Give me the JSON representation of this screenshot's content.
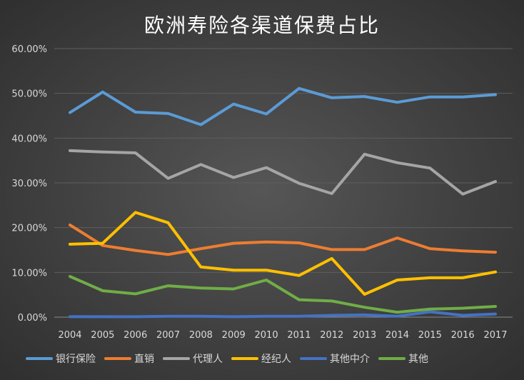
{
  "chart_data": {
    "type": "line",
    "title": "欧洲寿险各渠道保费占比",
    "categories": [
      "2004",
      "2005",
      "2006",
      "2007",
      "2008",
      "2009",
      "2010",
      "2011",
      "2012",
      "2013",
      "2014",
      "2015",
      "2016",
      "2017"
    ],
    "y_ticks": [
      "0.00%",
      "10.00%",
      "20.00%",
      "30.00%",
      "40.00%",
      "50.00%",
      "60.00%"
    ],
    "ylim": [
      0,
      60
    ],
    "grid": true,
    "legend_position": "bottom",
    "series": [
      {
        "name": "银行保险",
        "color": "#5b9bd5",
        "values": [
          45.7,
          50.3,
          45.8,
          45.5,
          43.0,
          47.6,
          45.4,
          51.1,
          49.0,
          49.3,
          48.0,
          49.2,
          49.2,
          49.7
        ]
      },
      {
        "name": "直销",
        "color": "#ed7d31",
        "values": [
          20.6,
          16.0,
          14.9,
          14.0,
          15.3,
          16.5,
          16.8,
          16.6,
          15.1,
          15.1,
          17.7,
          15.3,
          14.8,
          14.5
        ]
      },
      {
        "name": "代理人",
        "color": "#a5a5a5",
        "values": [
          37.2,
          36.9,
          36.7,
          31.0,
          34.1,
          31.2,
          33.4,
          29.9,
          27.6,
          36.4,
          34.5,
          33.3,
          27.5,
          30.3
        ]
      },
      {
        "name": "经纪人",
        "color": "#ffc000",
        "values": [
          16.3,
          16.5,
          23.4,
          21.1,
          11.2,
          10.5,
          10.5,
          9.3,
          13.1,
          5.1,
          8.3,
          8.8,
          8.8,
          10.1
        ]
      },
      {
        "name": "其他中介",
        "color": "#4472c4",
        "values": [
          0.1,
          0.1,
          0.1,
          0.2,
          0.2,
          0.1,
          0.2,
          0.2,
          0.4,
          0.5,
          0.2,
          1.2,
          0.4,
          0.7
        ]
      },
      {
        "name": "其他",
        "color": "#70ad47",
        "values": [
          9.1,
          5.9,
          5.2,
          7.0,
          6.5,
          6.3,
          8.3,
          3.9,
          3.6,
          2.2,
          1.1,
          1.8,
          2.0,
          2.4
        ]
      }
    ]
  }
}
